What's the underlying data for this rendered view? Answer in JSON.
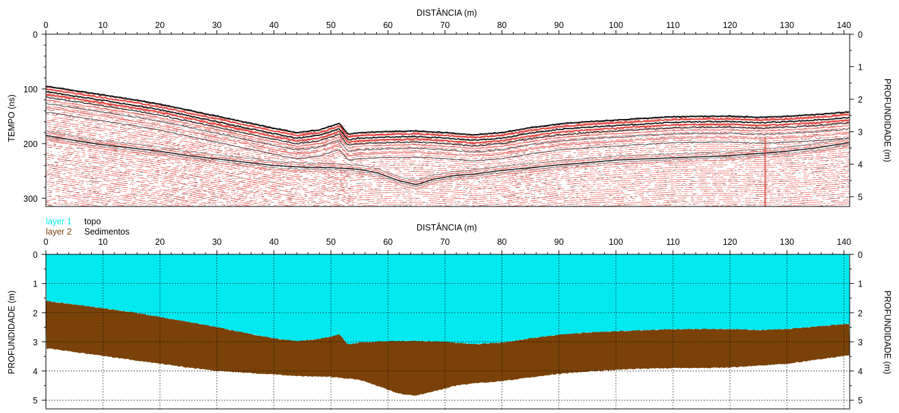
{
  "chart_data": [
    {
      "type": "radargram",
      "title": "",
      "xlabel": "DISTÂNCIA (m)",
      "ylabel": "TEMPO (ns)",
      "y2label": "PROFUNDIDADE (m)",
      "xlim": [
        0,
        141
      ],
      "ylim": [
        0,
        315
      ],
      "y2lim": [
        0,
        5.3
      ],
      "x_ticks": [
        0,
        10,
        20,
        30,
        40,
        50,
        60,
        70,
        80,
        90,
        100,
        110,
        120,
        130,
        140
      ],
      "y_ticks": [
        0,
        100,
        200,
        300
      ],
      "y2_ticks": [
        0,
        1,
        2,
        3,
        4,
        5
      ],
      "colors": {
        "signal": "#e03028",
        "trace": "#111111"
      },
      "reflector_top": {
        "x": [
          0,
          5,
          10,
          15,
          20,
          25,
          30,
          35,
          40,
          44,
          48,
          50,
          51.5,
          53,
          55,
          60,
          65,
          70,
          75,
          80,
          85,
          90,
          95,
          100,
          105,
          110,
          115,
          120,
          125,
          130,
          135,
          141
        ],
        "y": [
          95,
          103,
          111,
          119,
          128,
          139,
          150,
          161,
          172,
          180,
          175,
          168,
          163,
          183,
          180,
          178,
          177,
          180,
          184,
          180,
          171,
          164,
          160,
          157,
          154,
          151,
          150,
          150,
          152,
          150,
          147,
          142
        ]
      },
      "reflector_base": {
        "x": [
          0,
          5,
          10,
          15,
          20,
          25,
          30,
          35,
          40,
          45,
          50,
          55,
          58,
          62,
          65,
          68,
          72,
          75,
          80,
          85,
          90,
          95,
          100,
          105,
          110,
          115,
          120,
          125,
          130,
          135,
          141
        ],
        "y": [
          185,
          194,
          202,
          208,
          214,
          222,
          228,
          234,
          240,
          243,
          244,
          247,
          253,
          268,
          275,
          265,
          258,
          256,
          249,
          244,
          239,
          235,
          230,
          228,
          226,
          224,
          222,
          218,
          214,
          208,
          198
        ]
      }
    },
    {
      "type": "area",
      "title": "",
      "xlabel": "DISTÂNCIA (m)",
      "ylabel": "PROFUNDIDADE (m)",
      "y2label": "PROFUNDIDADE (m)",
      "xlim": [
        0,
        141
      ],
      "ylim": [
        0,
        5.3
      ],
      "x_ticks": [
        0,
        10,
        20,
        30,
        40,
        50,
        60,
        70,
        80,
        90,
        100,
        110,
        120,
        130,
        140
      ],
      "y_ticks": [
        0,
        1,
        2,
        3,
        4,
        5
      ],
      "grid": true,
      "legend": [
        {
          "name": "layer 1",
          "label": "topo",
          "color": "#00e8f0"
        },
        {
          "name": "layer 2",
          "label": "Sedimentos",
          "color": "#7a4208"
        }
      ],
      "layer1_top": 0,
      "layer2_top": {
        "x": [
          0,
          5,
          10,
          15,
          20,
          25,
          30,
          35,
          40,
          44,
          48,
          50,
          51.5,
          53,
          55,
          60,
          65,
          70,
          75,
          80,
          85,
          90,
          95,
          100,
          105,
          110,
          115,
          120,
          125,
          130,
          135,
          141
        ],
        "y": [
          1.6,
          1.72,
          1.85,
          1.98,
          2.15,
          2.32,
          2.5,
          2.7,
          2.88,
          2.98,
          2.9,
          2.82,
          2.75,
          3.1,
          3.02,
          2.98,
          2.97,
          3.0,
          3.08,
          3.03,
          2.88,
          2.76,
          2.68,
          2.64,
          2.6,
          2.57,
          2.56,
          2.56,
          2.6,
          2.56,
          2.48,
          2.38
        ]
      },
      "layer2_base": {
        "x": [
          0,
          5,
          10,
          15,
          20,
          25,
          30,
          35,
          40,
          45,
          50,
          55,
          58,
          62,
          65,
          68,
          72,
          75,
          80,
          85,
          90,
          95,
          100,
          105,
          110,
          115,
          120,
          125,
          130,
          135,
          141
        ],
        "y": [
          3.22,
          3.35,
          3.48,
          3.62,
          3.75,
          3.88,
          4.0,
          4.06,
          4.12,
          4.18,
          4.2,
          4.3,
          4.5,
          4.78,
          4.85,
          4.7,
          4.5,
          4.42,
          4.35,
          4.22,
          4.1,
          4.02,
          3.96,
          3.92,
          3.9,
          3.9,
          3.88,
          3.82,
          3.75,
          3.62,
          3.45
        ]
      }
    }
  ]
}
